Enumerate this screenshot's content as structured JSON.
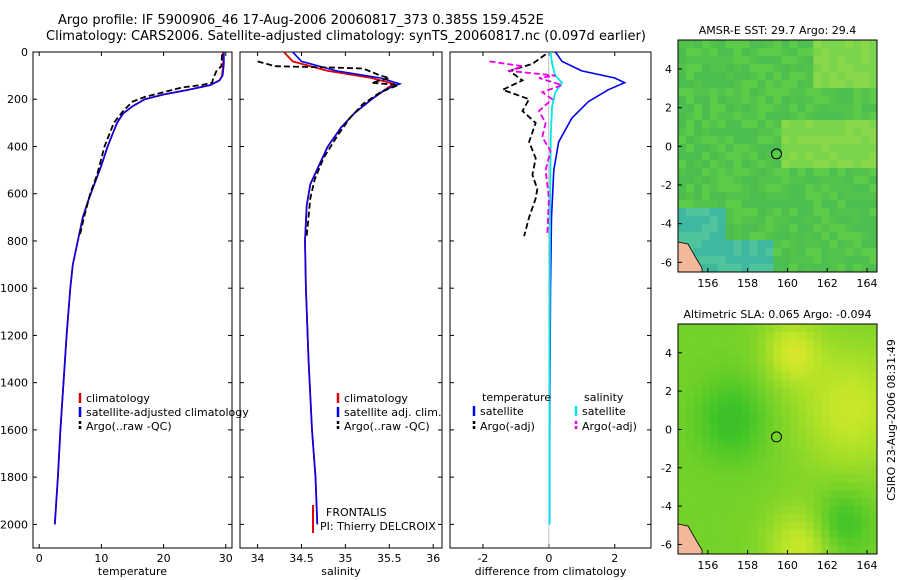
{
  "header": {
    "line1": "Argo profile: IF 5900906_46 17-Aug-2006 20060817_373 0.385S 159.452E",
    "line2": "Climatology: CARS2006. Satellite-adjusted climatology: synTS_20060817.nc (0.097d earlier)"
  },
  "side_label": "CSIRO 23-Aug-2006 08:31:49",
  "colors": {
    "climatology": "#e00000",
    "satellite": "#0000ee",
    "argo": "#000000",
    "sat_salinity": "#00e5e5",
    "argo_salinity": "#ee00ee"
  },
  "chart_data": [
    {
      "type": "line",
      "xlabel": "temperature",
      "ylabel": "",
      "xlim": [
        -1,
        31
      ],
      "ylim": [
        2100,
        0
      ],
      "x_ticks": [
        "0",
        "10",
        "20",
        "30"
      ],
      "y_ticks": [
        "0",
        "200",
        "400",
        "600",
        "800",
        "1000",
        "1200",
        "1400",
        "1600",
        "1800",
        "2000"
      ],
      "legend": {
        "position": "lower-right",
        "entries": [
          "climatology",
          "satellite-adjusted climatology",
          "Argo(..raw -QC)"
        ]
      },
      "series": [
        {
          "name": "climatology",
          "color": "#e00000",
          "points": [
            [
              29.5,
              0
            ],
            [
              29.6,
              50
            ],
            [
              29.4,
              100
            ],
            [
              29.0,
              120
            ],
            [
              27.5,
              140
            ],
            [
              24,
              160
            ],
            [
              20,
              180
            ],
            [
              17,
              200
            ],
            [
              15,
              230
            ],
            [
              13.5,
              260
            ],
            [
              12.5,
              300
            ],
            [
              11,
              400
            ],
            [
              10,
              480
            ],
            [
              9,
              550
            ],
            [
              8,
              620
            ],
            [
              7,
              700
            ],
            [
              6.2,
              800
            ],
            [
              5.4,
              900
            ],
            [
              5,
              1000
            ],
            [
              4.4,
              1200
            ],
            [
              3.9,
              1400
            ],
            [
              3.4,
              1600
            ],
            [
              3,
              1800
            ],
            [
              2.5,
              2000
            ]
          ]
        },
        {
          "name": "satellite-adjusted climatology",
          "color": "#0000ee",
          "points": [
            [
              29.7,
              0
            ],
            [
              29.7,
              50
            ],
            [
              29.5,
              100
            ],
            [
              29.0,
              120
            ],
            [
              27.5,
              140
            ],
            [
              24,
              160
            ],
            [
              20,
              180
            ],
            [
              17,
              200
            ],
            [
              15,
              230
            ],
            [
              13.5,
              260
            ],
            [
              12.5,
              300
            ],
            [
              11,
              400
            ],
            [
              10,
              480
            ],
            [
              9,
              550
            ],
            [
              8,
              620
            ],
            [
              7,
              700
            ],
            [
              6.2,
              800
            ],
            [
              5.4,
              900
            ],
            [
              5,
              1000
            ],
            [
              4.4,
              1200
            ],
            [
              3.9,
              1400
            ],
            [
              3.4,
              1600
            ],
            [
              3,
              1800
            ],
            [
              2.5,
              2000
            ]
          ]
        },
        {
          "name": "Argo(..raw -QC)",
          "color": "#000000",
          "points": [
            [
              29.4,
              10
            ],
            [
              29.3,
              60
            ],
            [
              28.5,
              80
            ],
            [
              28,
              110
            ],
            [
              27.8,
              130
            ],
            [
              26,
              140
            ],
            [
              23,
              150
            ],
            [
              20,
              170
            ],
            [
              17,
              190
            ],
            [
              15,
              210
            ],
            [
              13.5,
              250
            ],
            [
              12,
              300
            ],
            [
              10.5,
              400
            ],
            [
              9.3,
              520
            ],
            [
              8.2,
              600
            ],
            [
              7.2,
              700
            ],
            [
              6.5,
              780
            ]
          ]
        }
      ]
    },
    {
      "type": "line",
      "xlabel": "salinity",
      "ylabel": "",
      "xlim": [
        33.8,
        36.1
      ],
      "ylim": [
        2100,
        0
      ],
      "x_ticks": [
        "34",
        "34.5",
        "35",
        "35.5",
        "36"
      ],
      "legend": {
        "position": "lower-right",
        "entries": [
          "climatology",
          "satellite adj. clim.",
          "Argo(..raw -QC)"
        ]
      },
      "annotations": [
        "FRONTALIS",
        "PI: Thierry DELCROIX"
      ],
      "series": [
        {
          "name": "climatology",
          "color": "#e00000",
          "points": [
            [
              34.3,
              0
            ],
            [
              34.4,
              40
            ],
            [
              34.8,
              80
            ],
            [
              35.3,
              110
            ],
            [
              35.55,
              135
            ],
            [
              35.45,
              160
            ],
            [
              35.3,
              200
            ],
            [
              35.1,
              260
            ],
            [
              34.95,
              320
            ],
            [
              34.8,
              400
            ],
            [
              34.7,
              480
            ],
            [
              34.6,
              560
            ],
            [
              34.56,
              650
            ],
            [
              34.54,
              800
            ],
            [
              34.55,
              1000
            ],
            [
              34.58,
              1300
            ],
            [
              34.62,
              1600
            ],
            [
              34.66,
              1800
            ],
            [
              34.68,
              2000
            ]
          ]
        },
        {
          "name": "satellite adj. clim.",
          "color": "#0000ee",
          "points": [
            [
              34.4,
              0
            ],
            [
              34.5,
              40
            ],
            [
              34.9,
              80
            ],
            [
              35.4,
              110
            ],
            [
              35.62,
              135
            ],
            [
              35.45,
              160
            ],
            [
              35.3,
              200
            ],
            [
              35.1,
              260
            ],
            [
              34.95,
              320
            ],
            [
              34.8,
              400
            ],
            [
              34.7,
              480
            ],
            [
              34.6,
              560
            ],
            [
              34.56,
              650
            ],
            [
              34.54,
              800
            ],
            [
              34.55,
              1000
            ],
            [
              34.58,
              1300
            ],
            [
              34.62,
              1600
            ],
            [
              34.66,
              1800
            ],
            [
              34.68,
              2000
            ]
          ]
        },
        {
          "name": "Argo(..raw -QC)",
          "color": "#000000",
          "points": [
            [
              34.0,
              40
            ],
            [
              34.2,
              60
            ],
            [
              34.8,
              65
            ],
            [
              35.2,
              70
            ],
            [
              35.4,
              100
            ],
            [
              35.5,
              110
            ],
            [
              35.3,
              130
            ],
            [
              35.6,
              140
            ],
            [
              35.4,
              170
            ],
            [
              35.2,
              220
            ],
            [
              35.05,
              280
            ],
            [
              34.9,
              360
            ],
            [
              34.75,
              450
            ],
            [
              34.65,
              540
            ],
            [
              34.6,
              620
            ],
            [
              34.58,
              700
            ],
            [
              34.56,
              780
            ]
          ]
        }
      ]
    },
    {
      "type": "line",
      "xlabel": "difference from climatology",
      "ylabel": "",
      "xlim": [
        -3,
        3.1
      ],
      "ylim": [
        2100,
        0
      ],
      "x_ticks": [
        "-2",
        "0",
        "2"
      ],
      "legend": {
        "position": "lower-center",
        "entries": [
          "temperature",
          "salinity",
          "satellite",
          "satellite",
          "Argo(-adj)",
          "Argo(-adj)"
        ]
      },
      "series": [
        {
          "name": "satellite",
          "color": "#0000ee",
          "points": [
            [
              0.2,
              0
            ],
            [
              0.4,
              40
            ],
            [
              1.0,
              80
            ],
            [
              2.0,
              110
            ],
            [
              2.3,
              130
            ],
            [
              1.8,
              160
            ],
            [
              1.2,
              210
            ],
            [
              0.7,
              280
            ],
            [
              0.3,
              380
            ],
            [
              0.15,
              500
            ],
            [
              0.08,
              700
            ],
            [
              0.05,
              1000
            ],
            [
              0.03,
              1500
            ],
            [
              0.02,
              2000
            ]
          ]
        },
        {
          "name": "Argo(-adj)",
          "color": "#000000",
          "points": [
            [
              -0.1,
              10
            ],
            [
              -0.5,
              50
            ],
            [
              -1.2,
              80
            ],
            [
              -0.8,
              120
            ],
            [
              -1.4,
              160
            ],
            [
              -0.6,
              200
            ],
            [
              -0.8,
              250
            ],
            [
              -0.4,
              300
            ],
            [
              -0.6,
              380
            ],
            [
              -0.4,
              450
            ],
            [
              -0.5,
              520
            ],
            [
              -0.35,
              580
            ],
            [
              -0.4,
              620
            ],
            [
              -0.6,
              700
            ],
            [
              -0.75,
              780
            ]
          ]
        },
        {
          "name": "satellite",
          "color": "#00e5e5",
          "points": [
            [
              0.05,
              0
            ],
            [
              0.1,
              50
            ],
            [
              0.2,
              100
            ],
            [
              0.4,
              130
            ],
            [
              0.2,
              170
            ],
            [
              0.1,
              230
            ],
            [
              0.06,
              350
            ],
            [
              0.04,
              600
            ],
            [
              0.03,
              1000
            ],
            [
              0.02,
              1500
            ],
            [
              0.02,
              2000
            ]
          ]
        },
        {
          "name": "Argo(-adj)",
          "color": "#ee00ee",
          "points": [
            [
              -1.8,
              40
            ],
            [
              -0.8,
              60
            ],
            [
              -1.2,
              80
            ],
            [
              0.2,
              100
            ],
            [
              -0.3,
              110
            ],
            [
              0.4,
              140
            ],
            [
              -0.2,
              170
            ],
            [
              0.1,
              200
            ],
            [
              -0.3,
              250
            ],
            [
              -0.1,
              300
            ],
            [
              -0.2,
              360
            ],
            [
              0.05,
              420
            ],
            [
              -0.1,
              500
            ],
            [
              0.0,
              620
            ],
            [
              -0.05,
              780
            ]
          ]
        }
      ]
    },
    {
      "type": "heatmap",
      "title": "AMSR-E SST: 29.7 Argo: 29.4",
      "xlim": [
        154.5,
        164.5
      ],
      "ylim": [
        -6.5,
        5.5
      ],
      "x_ticks": [
        "156",
        "158",
        "160",
        "162",
        "164"
      ],
      "y_ticks": [
        "4",
        "2",
        "0",
        "-2",
        "-4",
        "-6"
      ],
      "marker": [
        159.45,
        -0.39
      ]
    },
    {
      "type": "heatmap",
      "title": "Altimetric SLA: 0.065 Argo: -0.094",
      "xlim": [
        154.5,
        164.5
      ],
      "ylim": [
        -6.5,
        5.5
      ],
      "x_ticks": [
        "156",
        "158",
        "160",
        "162",
        "164"
      ],
      "y_ticks": [
        "4",
        "2",
        "0",
        "-2",
        "-4",
        "-6"
      ],
      "marker": [
        159.45,
        -0.39
      ]
    }
  ]
}
